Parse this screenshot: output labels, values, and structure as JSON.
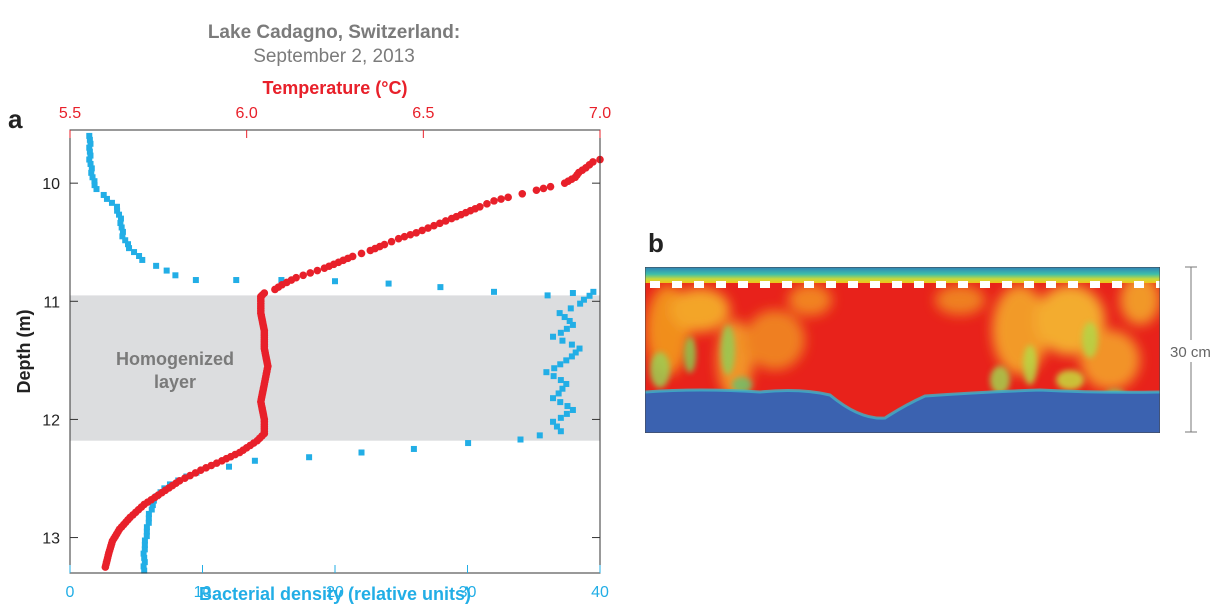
{
  "figure": {
    "title_line1": "Lake Cadagno, Switzerland:",
    "title_line2": "September 2, 2013"
  },
  "panels": {
    "a": {
      "label": "a"
    },
    "b": {
      "label": "b",
      "scale_label": "30 cm"
    }
  },
  "colors": {
    "temperature": "#e8202a",
    "bacteria": "#22aee6",
    "layer_band": "#dcdddf",
    "band_text": "#7a7a7a"
  },
  "chart_data": [
    {
      "type": "scatter",
      "panel": "a",
      "xlabel_top": "Temperature (°C)",
      "xlabel_bottom": "Bacterial density (relative units)",
      "ylabel": "Depth (m)",
      "y_reversed": true,
      "ylim": [
        9.55,
        13.3
      ],
      "xlim_top": [
        5.5,
        7.0
      ],
      "xlim_bottom": [
        0,
        40
      ],
      "yticks": [
        10,
        11,
        12,
        13
      ],
      "xticks_top": [
        5.5,
        6.0,
        6.5,
        7.0
      ],
      "xticks_top_labels": [
        "5.5",
        "6.0",
        "6.5",
        "7.0"
      ],
      "xticks_bottom": [
        0,
        10,
        20,
        30,
        40
      ],
      "annotation": {
        "line1": "Homogenized",
        "line2": "layer",
        "depth_range": [
          10.95,
          12.18
        ]
      },
      "grid": false,
      "series": [
        {
          "name": "Temperature (°C)",
          "axis": "top",
          "marker": "circle",
          "points": [
            [
              7.0,
              9.8
            ],
            [
              6.98,
              9.82
            ],
            [
              6.96,
              9.87
            ],
            [
              6.94,
              9.91
            ],
            [
              6.93,
              9.95
            ],
            [
              6.9,
              10.0
            ],
            [
              6.86,
              10.03
            ],
            [
              6.82,
              10.06
            ],
            [
              6.78,
              10.09
            ],
            [
              6.74,
              10.12
            ],
            [
              6.7,
              10.15
            ],
            [
              6.66,
              10.2
            ],
            [
              6.62,
              10.25
            ],
            [
              6.58,
              10.3
            ],
            [
              6.53,
              10.36
            ],
            [
              6.48,
              10.42
            ],
            [
              6.43,
              10.47
            ],
            [
              6.39,
              10.52
            ],
            [
              6.35,
              10.57
            ],
            [
              6.3,
              10.62
            ],
            [
              6.26,
              10.67
            ],
            [
              6.22,
              10.72
            ],
            [
              6.18,
              10.76
            ],
            [
              6.14,
              10.8
            ],
            [
              6.1,
              10.86
            ],
            [
              6.08,
              10.9
            ],
            [
              6.05,
              10.93
            ],
            [
              6.04,
              10.96
            ],
            [
              6.04,
              11.1
            ],
            [
              6.05,
              11.25
            ],
            [
              6.05,
              11.4
            ],
            [
              6.06,
              11.55
            ],
            [
              6.05,
              11.7
            ],
            [
              6.04,
              11.85
            ],
            [
              6.05,
              12.0
            ],
            [
              6.05,
              12.12
            ],
            [
              6.03,
              12.18
            ],
            [
              5.98,
              12.28
            ],
            [
              5.93,
              12.35
            ],
            [
              5.87,
              12.43
            ],
            [
              5.81,
              12.52
            ],
            [
              5.76,
              12.62
            ],
            [
              5.71,
              12.72
            ],
            [
              5.67,
              12.83
            ],
            [
              5.64,
              12.93
            ],
            [
              5.62,
              13.03
            ],
            [
              5.61,
              13.13
            ],
            [
              5.6,
              13.25
            ]
          ]
        },
        {
          "name": "Bacterial density (relative units)",
          "axis": "bottom",
          "marker": "square",
          "points": [
            [
              1.5,
              9.6
            ],
            [
              1.5,
              9.8
            ],
            [
              1.7,
              9.95
            ],
            [
              2.0,
              10.05
            ],
            [
              2.5,
              10.1
            ],
            [
              3.5,
              10.2
            ],
            [
              3.8,
              10.3
            ],
            [
              4.0,
              10.45
            ],
            [
              4.5,
              10.55
            ],
            [
              5.5,
              10.65
            ],
            [
              6.5,
              10.7
            ],
            [
              8.0,
              10.78
            ],
            [
              9.5,
              10.82
            ],
            [
              12.5,
              10.82
            ],
            [
              16.0,
              10.82
            ],
            [
              20.0,
              10.83
            ],
            [
              24.0,
              10.85
            ],
            [
              28.0,
              10.88
            ],
            [
              32.0,
              10.92
            ],
            [
              36.0,
              10.95
            ],
            [
              38.0,
              10.93
            ],
            [
              39.5,
              10.92
            ],
            [
              38.5,
              11.02
            ],
            [
              37.0,
              11.1
            ],
            [
              38.0,
              11.2
            ],
            [
              36.5,
              11.3
            ],
            [
              38.5,
              11.4
            ],
            [
              37.5,
              11.5
            ],
            [
              36.0,
              11.6
            ],
            [
              37.5,
              11.7
            ],
            [
              36.5,
              11.82
            ],
            [
              38.0,
              11.92
            ],
            [
              36.5,
              12.02
            ],
            [
              37.0,
              12.1
            ],
            [
              34.0,
              12.17
            ],
            [
              30.0,
              12.2
            ],
            [
              26.0,
              12.25
            ],
            [
              22.0,
              12.28
            ],
            [
              18.0,
              12.32
            ],
            [
              14.0,
              12.35
            ],
            [
              12.0,
              12.4
            ],
            [
              9.5,
              12.45
            ],
            [
              7.5,
              12.55
            ],
            [
              6.5,
              12.65
            ],
            [
              6.0,
              12.8
            ],
            [
              5.8,
              12.95
            ],
            [
              5.6,
              13.1
            ],
            [
              5.6,
              13.28
            ]
          ]
        }
      ]
    }
  ]
}
